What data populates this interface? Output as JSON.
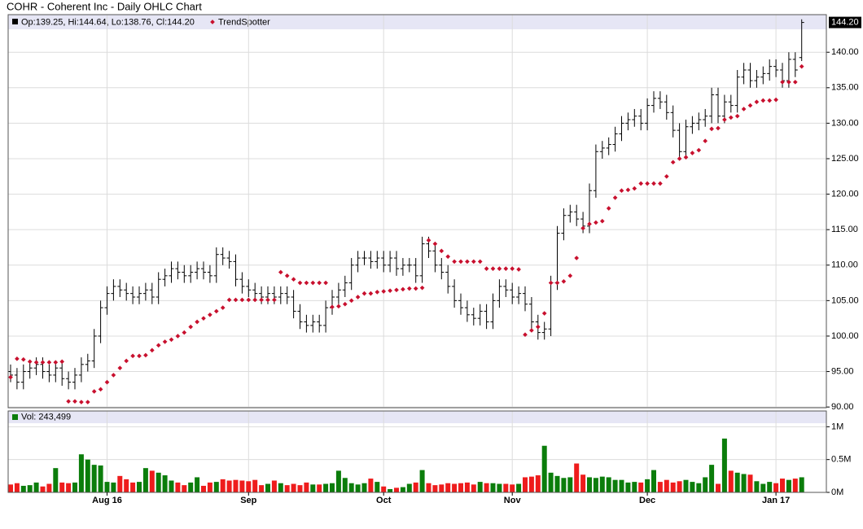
{
  "chart_data": [
    {
      "type": "ohlc",
      "title": "COHR - Coherent Inc - Daily OHLC Chart",
      "legend_text": "Op:139.25, Hi:144.64, Lo:138.76, Cl:144.20",
      "color": "#000000",
      "categories": [
        null,
        null,
        null,
        null,
        null,
        null,
        null,
        null,
        null,
        null,
        null,
        null,
        null,
        null,
        null,
        "Aug 16",
        null,
        null,
        null,
        null,
        null,
        null,
        null,
        null,
        null,
        null,
        null,
        null,
        null,
        null,
        null,
        null,
        null,
        null,
        null,
        null,
        null,
        "Sep",
        null,
        null,
        null,
        null,
        null,
        null,
        null,
        null,
        null,
        null,
        null,
        null,
        null,
        null,
        null,
        null,
        null,
        null,
        null,
        null,
        "Oct",
        null,
        null,
        null,
        null,
        null,
        null,
        null,
        null,
        null,
        null,
        null,
        null,
        null,
        null,
        null,
        null,
        null,
        null,
        null,
        "Nov",
        null,
        null,
        null,
        null,
        null,
        null,
        null,
        null,
        null,
        null,
        null,
        null,
        null,
        null,
        null,
        null,
        null,
        null,
        null,
        null,
        "Dec",
        null,
        null,
        null,
        null,
        null,
        null,
        null,
        null,
        null,
        null,
        null,
        null,
        null,
        null,
        null,
        null,
        null,
        null,
        null,
        "Jan 17",
        null,
        null,
        null,
        null
      ],
      "open": [
        95,
        94.5,
        93.5,
        95,
        95.5,
        96,
        95,
        94.5,
        95.5,
        94,
        93.5,
        94.5,
        96,
        96.5,
        100,
        104,
        106,
        107,
        106.5,
        106,
        105.5,
        106,
        106.5,
        105.5,
        108,
        108.5,
        109.5,
        109,
        108.5,
        109,
        109.5,
        109,
        108.5,
        111.5,
        111,
        110.5,
        108,
        107,
        106.5,
        106,
        105.5,
        106,
        105.5,
        106,
        105.5,
        103.5,
        102,
        101.5,
        102,
        101.5,
        104,
        105.5,
        106.5,
        107.5,
        110,
        111,
        111,
        110.5,
        111,
        110,
        111,
        109.5,
        110,
        110,
        108.5,
        113,
        112,
        110,
        109,
        107,
        105,
        104,
        103,
        102.5,
        103.5,
        102,
        105,
        107,
        106.5,
        105.5,
        106,
        104.5,
        102,
        100.5,
        101,
        107.5,
        114.5,
        117,
        117.5,
        116.5,
        115.5,
        120.5,
        126,
        126.5,
        127,
        128.5,
        130,
        130.5,
        131,
        130,
        132.5,
        133.5,
        133,
        131.5,
        129,
        126,
        129.5,
        130,
        130.5,
        131,
        134,
        131,
        133,
        132.5,
        136.5,
        137.5,
        136,
        136.5,
        137,
        138,
        137.5,
        136,
        139,
        139.25
      ],
      "high": [
        96,
        95.5,
        96,
        96.5,
        97,
        97,
        96,
        96.5,
        96.5,
        95,
        95.5,
        97,
        97.5,
        101,
        105,
        107,
        108,
        108,
        107.5,
        107,
        107,
        107.5,
        107.5,
        109,
        109.5,
        110.5,
        110.5,
        110,
        110,
        110.5,
        110.5,
        110,
        112.5,
        112.5,
        112,
        111.5,
        109,
        108,
        107.5,
        107,
        107,
        107,
        107,
        107,
        106.5,
        104.5,
        103,
        103,
        103,
        105,
        106.5,
        107.5,
        108.5,
        111,
        112,
        112,
        112,
        112,
        112,
        112,
        112,
        111,
        111,
        111,
        114,
        114,
        113,
        111,
        110,
        108,
        106,
        105,
        104,
        104.5,
        104.5,
        106,
        108,
        108,
        107.5,
        107,
        107,
        105.5,
        103,
        102,
        108.5,
        115.5,
        118,
        118.5,
        118.5,
        117.5,
        121.5,
        127,
        127.5,
        128,
        129.5,
        131,
        131.5,
        132,
        132,
        133.5,
        134.5,
        134.5,
        134,
        132.5,
        130,
        130.5,
        131,
        131.5,
        132,
        135,
        135,
        134,
        134,
        137.5,
        138.5,
        138.5,
        137.5,
        138,
        139,
        139,
        138.5,
        140,
        140,
        144.64
      ],
      "low": [
        93.5,
        92.5,
        92.5,
        94,
        94.5,
        94,
        93.5,
        93.5,
        93,
        92.5,
        92.5,
        93.5,
        95,
        95.5,
        99,
        103,
        105,
        105.5,
        105,
        104.5,
        104.5,
        105,
        104.5,
        104.5,
        107,
        107.5,
        108,
        107.5,
        107.5,
        108,
        108,
        107.5,
        107.5,
        110,
        109.5,
        107,
        106,
        105.5,
        105,
        104.5,
        104.5,
        104.5,
        104.5,
        104.5,
        102.5,
        101,
        100.5,
        100.5,
        100.5,
        100.5,
        103,
        104.5,
        105.5,
        106.5,
        109,
        110,
        109.5,
        109.5,
        109,
        109,
        108.5,
        108.5,
        109,
        107.5,
        107.5,
        111,
        109,
        108,
        106,
        104,
        103,
        102,
        101.5,
        101.5,
        101,
        101,
        104,
        105.5,
        104.5,
        104.5,
        103.5,
        101,
        99.5,
        99.5,
        100,
        106.5,
        113.5,
        116,
        115.5,
        114.5,
        114.5,
        119.5,
        125,
        125.5,
        126,
        127.5,
        129,
        129.5,
        129,
        129,
        131.5,
        132,
        130.5,
        128,
        125,
        125,
        128.5,
        129,
        129.5,
        130,
        130,
        130,
        131.5,
        131.5,
        135.5,
        135,
        135,
        135.5,
        136,
        136.5,
        135,
        135,
        136.5,
        138.76
      ],
      "close": [
        94.5,
        93.5,
        95,
        95.5,
        96,
        95,
        94.5,
        95.5,
        94,
        93.5,
        94.5,
        96,
        96.5,
        100,
        104,
        106,
        107,
        106.5,
        106,
        105.5,
        106,
        106.5,
        105.5,
        108,
        108.5,
        109.5,
        109,
        108.5,
        109,
        109.5,
        109,
        108.5,
        111.5,
        111,
        110.5,
        108,
        107,
        106.5,
        106,
        105.5,
        106,
        105.5,
        106,
        105.5,
        103.5,
        102,
        101.5,
        102,
        101.5,
        104,
        105.5,
        106.5,
        107.5,
        110,
        111,
        111,
        110.5,
        111,
        110,
        111,
        109.5,
        110,
        110,
        108.5,
        113,
        112,
        110,
        109,
        107,
        105,
        104,
        103,
        102.5,
        103.5,
        102,
        105,
        107,
        106.5,
        105.5,
        106,
        104.5,
        102,
        100.5,
        101,
        107.5,
        114.5,
        117,
        117.5,
        116.5,
        115.5,
        120.5,
        126,
        126.5,
        127,
        128.5,
        130,
        130.5,
        131,
        130,
        132.5,
        133.5,
        133,
        131.5,
        129,
        126,
        129.5,
        130,
        130.5,
        131,
        134,
        131,
        133,
        132.5,
        136.5,
        137.5,
        136,
        136.5,
        137,
        138,
        137.5,
        136,
        139,
        137.5,
        144.2
      ],
      "trend": {
        "name": "TrendSpotter",
        "color": "#c8102e",
        "values": [
          94.2,
          96.8,
          96.7,
          96.4,
          96.3,
          96.3,
          96.3,
          96.3,
          96.4,
          90.8,
          90.8,
          90.7,
          90.7,
          92.2,
          92.5,
          93.5,
          94.5,
          95.5,
          96.5,
          97.2,
          97.2,
          97.3,
          98,
          98.7,
          99.2,
          99.5,
          100,
          100.5,
          101.3,
          102,
          102.5,
          103,
          103.5,
          104,
          105.1,
          105.1,
          105.1,
          105.1,
          105.1,
          105.1,
          105.1,
          105.1,
          109,
          108.5,
          108,
          107.5,
          107.5,
          107.5,
          107.5,
          107.5,
          104.1,
          104.2,
          104.5,
          105,
          105.5,
          106,
          106,
          106.2,
          106.3,
          106.4,
          106.5,
          106.6,
          106.7,
          106.7,
          106.8,
          113.5,
          113,
          112,
          111.2,
          110.5,
          110.5,
          110.5,
          110.5,
          110.5,
          109.5,
          109.5,
          109.5,
          109.5,
          109.5,
          109.4,
          100.2,
          100.8,
          101.3,
          103.2,
          107.5,
          107.5,
          107.7,
          108.5,
          111,
          115.2,
          115.8,
          116,
          116.2,
          118,
          119.5,
          120.5,
          120.6,
          120.8,
          121.5,
          121.5,
          121.5,
          121.5,
          122.5,
          124.5,
          125,
          125.2,
          125.8,
          126.2,
          127.5,
          129.2,
          129.3,
          130.5,
          130.8,
          131,
          132,
          132.5,
          133,
          133.2,
          133.2,
          133.3,
          135.8,
          135.8,
          135.8,
          138
        ]
      },
      "last": {
        "value": 144.2,
        "label": "144.20"
      },
      "ylim": [
        89.9,
        145.3
      ],
      "yticks": [
        {
          "value": 90,
          "label": "90.00"
        },
        {
          "value": 95,
          "label": "95.00"
        },
        {
          "value": 100,
          "label": "100.00"
        },
        {
          "value": 105,
          "label": "105.00"
        },
        {
          "value": 110,
          "label": "110.00"
        },
        {
          "value": 115,
          "label": "115.00"
        },
        {
          "value": 120,
          "label": "120.00"
        },
        {
          "value": 125,
          "label": "125.00"
        },
        {
          "value": 130,
          "label": "130.00"
        },
        {
          "value": 135,
          "label": "135.00"
        },
        {
          "value": 140,
          "label": "140.00"
        }
      ],
      "grid": true
    },
    {
      "type": "bar",
      "legend_text": "Vol: 243,499",
      "up_color": "#0b7d0b",
      "down_color": "#ee1c1c",
      "values": [
        120000,
        140000,
        100000,
        110000,
        150000,
        90000,
        130000,
        370000,
        150000,
        140000,
        150000,
        580000,
        500000,
        420000,
        410000,
        160000,
        150000,
        250000,
        200000,
        150000,
        160000,
        370000,
        330000,
        300000,
        260000,
        180000,
        150000,
        110000,
        150000,
        230000,
        100000,
        150000,
        160000,
        200000,
        180000,
        190000,
        180000,
        170000,
        190000,
        110000,
        130000,
        180000,
        140000,
        110000,
        130000,
        110000,
        150000,
        120000,
        120000,
        130000,
        140000,
        330000,
        220000,
        140000,
        120000,
        140000,
        210000,
        160000,
        90000,
        50000,
        70000,
        80000,
        130000,
        150000,
        340000,
        140000,
        110000,
        120000,
        140000,
        130000,
        140000,
        150000,
        120000,
        160000,
        140000,
        140000,
        130000,
        130000,
        120000,
        130000,
        230000,
        240000,
        260000,
        710000,
        300000,
        250000,
        220000,
        230000,
        440000,
        270000,
        230000,
        220000,
        240000,
        230000,
        190000,
        190000,
        150000,
        160000,
        150000,
        200000,
        340000,
        160000,
        190000,
        150000,
        170000,
        190000,
        160000,
        140000,
        230000,
        420000,
        130000,
        820000,
        330000,
        300000,
        280000,
        270000,
        170000,
        130000,
        160000,
        140000,
        210000,
        190000,
        210000,
        230000
      ],
      "ylim": [
        0,
        1240000
      ],
      "yticks": [
        {
          "value": 0,
          "label": "0M"
        },
        {
          "value": 500000,
          "label": "0.5M"
        },
        {
          "value": 1000000,
          "label": "1M"
        }
      ],
      "grid": true
    }
  ]
}
